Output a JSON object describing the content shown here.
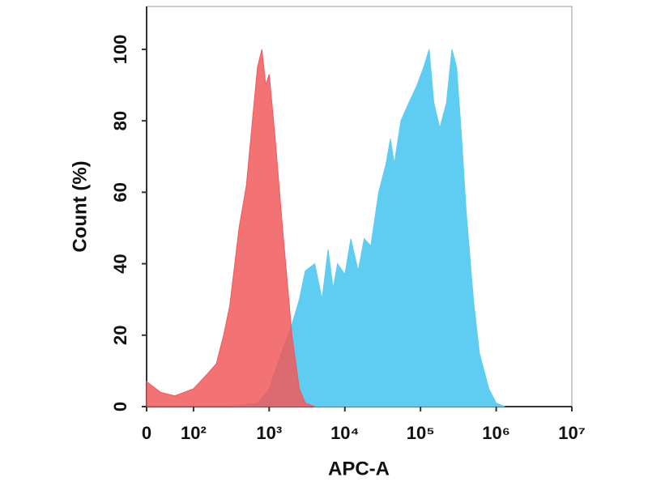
{
  "chart_data": {
    "type": "area",
    "xlabel": "APC-A",
    "ylabel": "Count  (%)",
    "xscale": "biexponential",
    "xlim": [
      0,
      10000000
    ],
    "ylim": [
      0,
      112
    ],
    "xticks": [
      0,
      {
        "value": 100,
        "label": "10²"
      },
      {
        "value": 1000,
        "label": "10³"
      },
      {
        "value": 10000,
        "label": "10⁴"
      },
      {
        "value": 100000,
        "label": "10⁵"
      },
      {
        "value": 1000000,
        "label": "10⁶"
      },
      {
        "value": 10000000,
        "label": "10⁷"
      }
    ],
    "yticks": [
      0,
      20,
      40,
      60,
      80,
      100
    ],
    "series": [
      {
        "color": "#5fcdf1",
        "x": [
          300,
          700,
          1000,
          1200,
          1500,
          2000,
          2500,
          3000,
          4000,
          5000,
          6000,
          7000,
          8000,
          10000,
          12000,
          15000,
          18000,
          22000,
          28000,
          35000,
          40000,
          45000,
          55000,
          70000,
          90000,
          110000,
          130000,
          150000,
          180000,
          220000,
          260000,
          300000,
          350000,
          400000,
          500000,
          600000,
          800000,
          1000000,
          1300000
        ],
        "values": [
          0,
          1,
          5,
          10,
          16,
          23,
          30,
          38,
          40,
          30,
          44,
          33,
          40,
          37,
          47,
          38,
          47,
          45,
          60,
          68,
          75,
          68,
          80,
          85,
          90,
          95,
          100,
          85,
          78,
          85,
          100,
          95,
          75,
          55,
          30,
          15,
          5,
          1,
          0
        ]
      },
      {
        "color": "#f1595b",
        "x": [
          0,
          30,
          60,
          100,
          150,
          200,
          250,
          300,
          400,
          500,
          600,
          700,
          800,
          900,
          1000,
          1200,
          1500,
          2000,
          2500,
          3000,
          4000
        ],
        "values": [
          7,
          4,
          3,
          5,
          9,
          12,
          20,
          28,
          50,
          62,
          80,
          95,
          100,
          90,
          93,
          75,
          50,
          20,
          5,
          1,
          0
        ]
      }
    ]
  }
}
